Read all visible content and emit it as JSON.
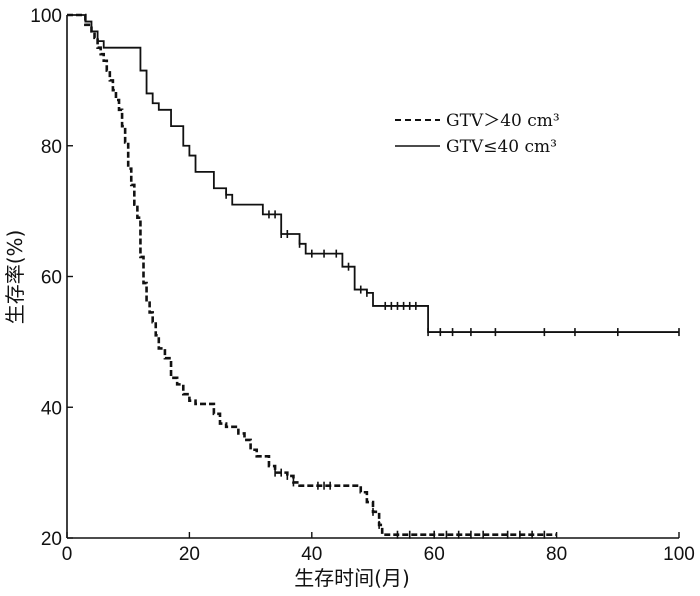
{
  "chart_data": {
    "type": "line",
    "title": "",
    "xlabel": "生存时间(月)",
    "ylabel": "生存率(%)",
    "xlim": [
      0,
      100
    ],
    "ylim": [
      20,
      100
    ],
    "x_ticks": [
      "0",
      "20",
      "40",
      "60",
      "80",
      "100"
    ],
    "y_ticks": [
      "20",
      "40",
      "60",
      "80",
      "100"
    ],
    "grid": false,
    "legend_position": "top-right",
    "series": [
      {
        "name": "GTV＞40 cm³",
        "line_style": "dashed",
        "color": "#111111",
        "points": [
          [
            0,
            100
          ],
          [
            3,
            100
          ],
          [
            3,
            98.5
          ],
          [
            4,
            98.5
          ],
          [
            4,
            97.5
          ],
          [
            4.5,
            97.5
          ],
          [
            4.5,
            96.5
          ],
          [
            5,
            96.5
          ],
          [
            5,
            95
          ],
          [
            5.5,
            95
          ],
          [
            5.5,
            94
          ],
          [
            6,
            94
          ],
          [
            6,
            93
          ],
          [
            6.5,
            93
          ],
          [
            6.5,
            91.5
          ],
          [
            7,
            91.5
          ],
          [
            7,
            90
          ],
          [
            7.5,
            90
          ],
          [
            7.5,
            88.5
          ],
          [
            8,
            88.5
          ],
          [
            8,
            87
          ],
          [
            8.5,
            87
          ],
          [
            8.5,
            85.5
          ],
          [
            9,
            85.5
          ],
          [
            9,
            83
          ],
          [
            9.5,
            83
          ],
          [
            9.5,
            80.5
          ],
          [
            10,
            80.5
          ],
          [
            10,
            76.5
          ],
          [
            10.5,
            76.5
          ],
          [
            10.5,
            74
          ],
          [
            11,
            74
          ],
          [
            11,
            71
          ],
          [
            11.5,
            71
          ],
          [
            11.5,
            69
          ],
          [
            12,
            69
          ],
          [
            12,
            63
          ],
          [
            12.5,
            63
          ],
          [
            12.5,
            59
          ],
          [
            13,
            59
          ],
          [
            13,
            56
          ],
          [
            13.5,
            56
          ],
          [
            13.5,
            54.5
          ],
          [
            14,
            54.5
          ],
          [
            14,
            53
          ],
          [
            14.5,
            53
          ],
          [
            14.5,
            51
          ],
          [
            15,
            51
          ],
          [
            15,
            49
          ],
          [
            16,
            49
          ],
          [
            16,
            47.5
          ],
          [
            17,
            47.5
          ],
          [
            17,
            44.5
          ],
          [
            18,
            44.5
          ],
          [
            18,
            43.5
          ],
          [
            19,
            43.5
          ],
          [
            19,
            42
          ],
          [
            20,
            42
          ],
          [
            20,
            41
          ],
          [
            21,
            41
          ],
          [
            21,
            40.5
          ],
          [
            24,
            40.5
          ],
          [
            24,
            39
          ],
          [
            25,
            39
          ],
          [
            25,
            37.5
          ],
          [
            26,
            37.5
          ],
          [
            26,
            37
          ],
          [
            28,
            37
          ],
          [
            28,
            36
          ],
          [
            29,
            36
          ],
          [
            29,
            35
          ],
          [
            30,
            35
          ],
          [
            30,
            33.5
          ],
          [
            31,
            33.5
          ],
          [
            31,
            32.5
          ],
          [
            33,
            32.5
          ],
          [
            33,
            31
          ],
          [
            34,
            31
          ],
          [
            34,
            30
          ],
          [
            36,
            30
          ],
          [
            36,
            29.5
          ],
          [
            37,
            29.5
          ],
          [
            37,
            28.5
          ],
          [
            38,
            28.5
          ],
          [
            38,
            28
          ],
          [
            48,
            28
          ],
          [
            48,
            27
          ],
          [
            49,
            27
          ],
          [
            49,
            25.5
          ],
          [
            50,
            25.5
          ],
          [
            50,
            24
          ],
          [
            51,
            24
          ],
          [
            51,
            22
          ],
          [
            51.5,
            22
          ],
          [
            51.5,
            20.5
          ],
          [
            80,
            20.5
          ]
        ],
        "censor_x": [
          34,
          35,
          36,
          37,
          41,
          42,
          43,
          50,
          51,
          54,
          56,
          60,
          62,
          64,
          66,
          68,
          72,
          74,
          76,
          78
        ]
      },
      {
        "name": "GTV≤40 cm³",
        "line_style": "solid",
        "color": "#111111",
        "points": [
          [
            0,
            100
          ],
          [
            3,
            100
          ],
          [
            3,
            99
          ],
          [
            4,
            99
          ],
          [
            4,
            97.5
          ],
          [
            5,
            97.5
          ],
          [
            5,
            96
          ],
          [
            6,
            96
          ],
          [
            6,
            95
          ],
          [
            12,
            95
          ],
          [
            12,
            91.5
          ],
          [
            13,
            91.5
          ],
          [
            13,
            88
          ],
          [
            14,
            88
          ],
          [
            14,
            86.5
          ],
          [
            15,
            86.5
          ],
          [
            15,
            85.5
          ],
          [
            17,
            85.5
          ],
          [
            17,
            83
          ],
          [
            19,
            83
          ],
          [
            19,
            80
          ],
          [
            20,
            80
          ],
          [
            20,
            78.5
          ],
          [
            21,
            78.5
          ],
          [
            21,
            76
          ],
          [
            24,
            76
          ],
          [
            24,
            73.5
          ],
          [
            26,
            73.5
          ],
          [
            26,
            72.5
          ],
          [
            27,
            72.5
          ],
          [
            27,
            71
          ],
          [
            32,
            71
          ],
          [
            32,
            69.5
          ],
          [
            35,
            69.5
          ],
          [
            35,
            66.5
          ],
          [
            38,
            66.5
          ],
          [
            38,
            65
          ],
          [
            39,
            65
          ],
          [
            39,
            63.5
          ],
          [
            45,
            63.5
          ],
          [
            45,
            61.5
          ],
          [
            47,
            61.5
          ],
          [
            47,
            58
          ],
          [
            49,
            58
          ],
          [
            49,
            57.5
          ],
          [
            50,
            57.5
          ],
          [
            50,
            55.5
          ],
          [
            59,
            55.5
          ],
          [
            59,
            51.5
          ],
          [
            100,
            51.5
          ]
        ],
        "censor_x": [
          26,
          33,
          34,
          35,
          36,
          38,
          40,
          42,
          44,
          46,
          48,
          49,
          52,
          53,
          54,
          55,
          56,
          57,
          59,
          61,
          63,
          66,
          70,
          78,
          83,
          90,
          100
        ]
      }
    ]
  }
}
